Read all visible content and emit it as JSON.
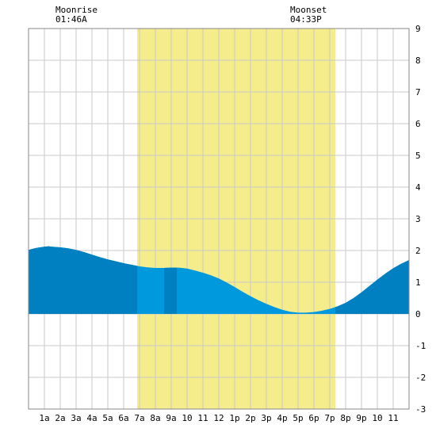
{
  "chart_data": {
    "type": "area",
    "x_unit": "hour",
    "xlim": [
      0,
      24
    ],
    "ylim": [
      -3,
      9
    ],
    "y_ticks": [
      -3,
      -2,
      -1,
      0,
      1,
      2,
      3,
      4,
      5,
      6,
      7,
      8,
      9
    ],
    "x_ticks": [
      {
        "x": 1,
        "label": "1a"
      },
      {
        "x": 2,
        "label": "2a"
      },
      {
        "x": 3,
        "label": "3a"
      },
      {
        "x": 4,
        "label": "4a"
      },
      {
        "x": 5,
        "label": "5a"
      },
      {
        "x": 6,
        "label": "6a"
      },
      {
        "x": 7,
        "label": "7a"
      },
      {
        "x": 8,
        "label": "8a"
      },
      {
        "x": 9,
        "label": "9a"
      },
      {
        "x": 10,
        "label": "10"
      },
      {
        "x": 11,
        "label": "11"
      },
      {
        "x": 12,
        "label": "12"
      },
      {
        "x": 13,
        "label": "1p"
      },
      {
        "x": 14,
        "label": "2p"
      },
      {
        "x": 15,
        "label": "3p"
      },
      {
        "x": 16,
        "label": "4p"
      },
      {
        "x": 17,
        "label": "5p"
      },
      {
        "x": 18,
        "label": "6p"
      },
      {
        "x": 19,
        "label": "7p"
      },
      {
        "x": 20,
        "label": "8p"
      },
      {
        "x": 21,
        "label": "9p"
      },
      {
        "x": 22,
        "label": "10"
      },
      {
        "x": 23,
        "label": "11"
      }
    ],
    "grid": true,
    "daylight": [
      6.85,
      19.35
    ],
    "night_shade_color": "#0080c0",
    "tide_color": "#0099dd",
    "daylight_color": "#f5ec8c",
    "highlight_bands": [
      [
        0,
        1.35
      ],
      [
        8.55,
        9.35
      ]
    ],
    "tide_series": {
      "x": [
        0,
        0.5,
        1,
        1.25,
        1.5,
        2,
        2.5,
        3,
        3.5,
        4,
        4.5,
        5,
        5.5,
        6,
        6.5,
        7,
        7.5,
        8,
        8.5,
        9,
        9.5,
        10,
        10.5,
        11,
        11.5,
        12,
        12.5,
        13,
        13.5,
        14,
        14.5,
        15,
        15.5,
        16,
        16.5,
        17,
        17.5,
        18,
        18.5,
        19,
        19.5,
        20,
        20.5,
        21,
        21.5,
        22,
        22.5,
        23,
        23.5,
        24
      ],
      "y": [
        2.02,
        2.08,
        2.12,
        2.13,
        2.12,
        2.1,
        2.07,
        2.02,
        1.95,
        1.87,
        1.79,
        1.72,
        1.66,
        1.6,
        1.55,
        1.5,
        1.47,
        1.45,
        1.45,
        1.46,
        1.46,
        1.43,
        1.37,
        1.3,
        1.22,
        1.12,
        0.99,
        0.85,
        0.7,
        0.56,
        0.43,
        0.32,
        0.22,
        0.13,
        0.07,
        0.04,
        0.04,
        0.06,
        0.1,
        0.16,
        0.24,
        0.35,
        0.5,
        0.68,
        0.88,
        1.08,
        1.27,
        1.44,
        1.58,
        1.7
      ]
    }
  },
  "annotations": {
    "moonrise": {
      "label": "Moonrise",
      "time": "01:46A",
      "x": 1.77
    },
    "moonset": {
      "label": "Moonset",
      "time": "04:33P",
      "x": 16.55
    }
  }
}
